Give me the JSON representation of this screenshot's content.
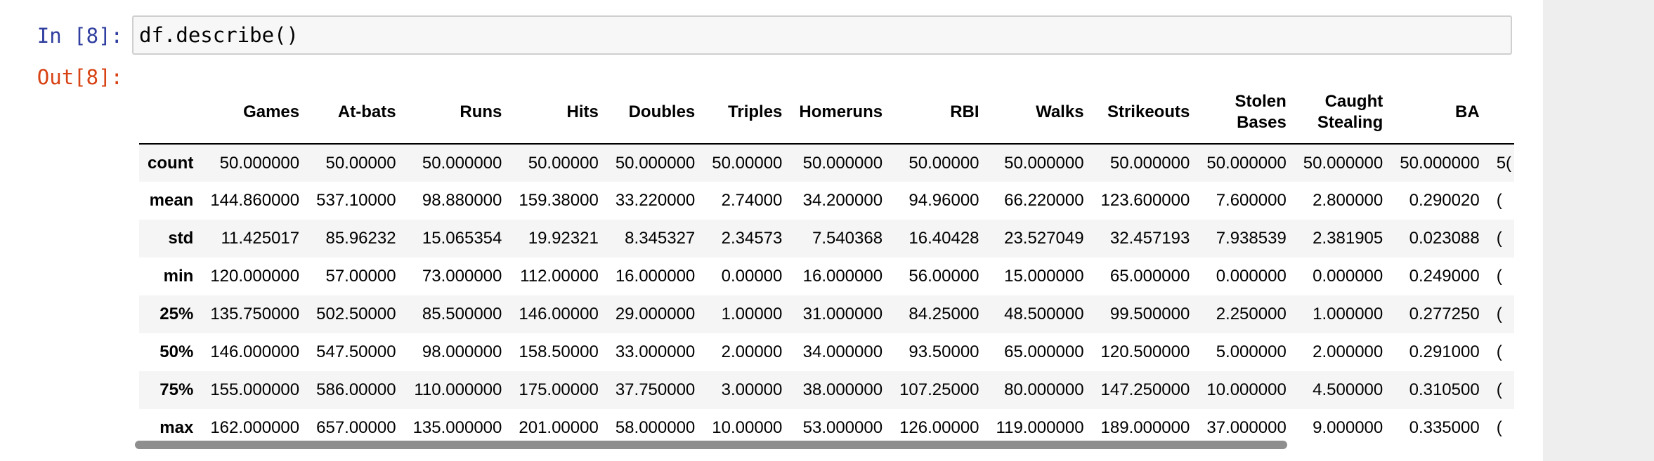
{
  "cell": {
    "in_prompt": "In [8]:",
    "out_prompt": "Out[8]:",
    "code": "df.describe()"
  },
  "table": {
    "columns": [
      [
        "Games"
      ],
      [
        "At-bats"
      ],
      [
        "Runs"
      ],
      [
        "Hits"
      ],
      [
        "Doubles"
      ],
      [
        "Triples"
      ],
      [
        "Homeruns"
      ],
      [
        "RBI"
      ],
      [
        "Walks"
      ],
      [
        "Strikeouts"
      ],
      [
        "Stolen",
        "Bases"
      ],
      [
        "Caught",
        "Stealing"
      ],
      [
        "BA"
      ],
      [
        ""
      ]
    ],
    "rows": [
      {
        "label": "count",
        "values": [
          "50.000000",
          "50.00000",
          "50.000000",
          "50.00000",
          "50.000000",
          "50.00000",
          "50.000000",
          "50.00000",
          "50.000000",
          "50.000000",
          "50.000000",
          "50.000000",
          "50.000000",
          "5("
        ]
      },
      {
        "label": "mean",
        "values": [
          "144.860000",
          "537.10000",
          "98.880000",
          "159.38000",
          "33.220000",
          "2.74000",
          "34.200000",
          "94.96000",
          "66.220000",
          "123.600000",
          "7.600000",
          "2.800000",
          "0.290020",
          "("
        ]
      },
      {
        "label": "std",
        "values": [
          "11.425017",
          "85.96232",
          "15.065354",
          "19.92321",
          "8.345327",
          "2.34573",
          "7.540368",
          "16.40428",
          "23.527049",
          "32.457193",
          "7.938539",
          "2.381905",
          "0.023088",
          "("
        ]
      },
      {
        "label": "min",
        "values": [
          "120.000000",
          "57.00000",
          "73.000000",
          "112.00000",
          "16.000000",
          "0.00000",
          "16.000000",
          "56.00000",
          "15.000000",
          "65.000000",
          "0.000000",
          "0.000000",
          "0.249000",
          "("
        ]
      },
      {
        "label": "25%",
        "values": [
          "135.750000",
          "502.50000",
          "85.500000",
          "146.00000",
          "29.000000",
          "1.00000",
          "31.000000",
          "84.25000",
          "48.500000",
          "99.500000",
          "2.250000",
          "1.000000",
          "0.277250",
          "("
        ]
      },
      {
        "label": "50%",
        "values": [
          "146.000000",
          "547.50000",
          "98.000000",
          "158.50000",
          "33.000000",
          "2.00000",
          "34.000000",
          "93.50000",
          "65.000000",
          "120.500000",
          "5.000000",
          "2.000000",
          "0.291000",
          "("
        ]
      },
      {
        "label": "75%",
        "values": [
          "155.000000",
          "586.00000",
          "110.000000",
          "175.00000",
          "37.750000",
          "3.00000",
          "38.000000",
          "107.25000",
          "80.000000",
          "147.250000",
          "10.000000",
          "4.500000",
          "0.310500",
          "("
        ]
      },
      {
        "label": "max",
        "values": [
          "162.000000",
          "657.00000",
          "135.000000",
          "201.00000",
          "58.000000",
          "10.00000",
          "53.000000",
          "126.00000",
          "119.000000",
          "189.000000",
          "37.000000",
          "9.000000",
          "0.335000",
          "("
        ]
      }
    ]
  }
}
